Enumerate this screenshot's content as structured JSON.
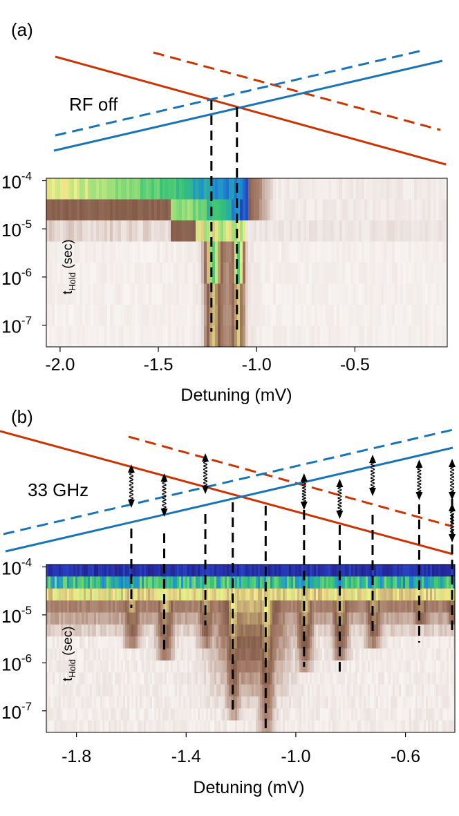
{
  "chart_data": [
    {
      "panel_label": "(a)",
      "type": "heatmap",
      "annotation": "RF off",
      "xlabel": "Detuning (mV)",
      "ylabel_main": "t",
      "ylabel_sub": "Hold",
      "ylabel_unit": " (sec)",
      "x_ticks": [
        {
          "value": -2.0,
          "label": "-2.0"
        },
        {
          "value": -1.5,
          "label": "-1.5"
        },
        {
          "value": -1.0,
          "label": "-1.0"
        },
        {
          "value": -0.5,
          "label": "-0.5"
        }
      ],
      "y_ticks": [
        {
          "exp": -4,
          "base": "10",
          "sup": "-4"
        },
        {
          "exp": -5,
          "base": "10",
          "sup": "-5"
        },
        {
          "exp": -6,
          "base": "10",
          "sup": "-6"
        },
        {
          "exp": -7,
          "base": "10",
          "sup": "-7"
        }
      ],
      "xlim": [
        -2.07,
        -0.03
      ],
      "ylim_log10": [
        -7.45,
        -3.95
      ],
      "y_scale": "log",
      "levels": {
        "crossing_detuning": -1.1,
        "dashed_crossing_detuning": -1.23
      },
      "dashed_markers": [
        -1.23,
        -1.1
      ],
      "colors": {
        "red": "#cc3300",
        "blue": "#1874b8"
      }
    },
    {
      "panel_label": "(b)",
      "type": "heatmap",
      "annotation": "33 GHz",
      "xlabel": "Detuning (mV)",
      "ylabel_main": "t",
      "ylabel_sub": "Hold",
      "ylabel_unit": " (sec)",
      "x_ticks": [
        {
          "value": -1.8,
          "label": "-1.8"
        },
        {
          "value": -1.4,
          "label": "-1.4"
        },
        {
          "value": -1.0,
          "label": "-1.0"
        },
        {
          "value": -0.6,
          "label": "-0.6"
        }
      ],
      "y_ticks": [
        {
          "exp": -4,
          "base": "10",
          "sup": "-4"
        },
        {
          "exp": -5,
          "base": "10",
          "sup": "-5"
        },
        {
          "exp": -6,
          "base": "10",
          "sup": "-6"
        },
        {
          "exp": -7,
          "base": "10",
          "sup": "-7"
        }
      ],
      "xlim": [
        -1.91,
        -0.42
      ],
      "ylim_log10": [
        -7.45,
        -3.95
      ],
      "y_scale": "log",
      "dashed_markers": [
        -1.6,
        -1.48,
        -1.33,
        -1.23,
        -1.11,
        -0.97,
        -0.84,
        -0.72,
        -0.55,
        -0.43
      ],
      "photon_arrows": [
        -1.6,
        -1.48,
        -1.33,
        -0.97,
        -0.84,
        -0.72,
        -0.55,
        -0.43
      ],
      "colors": {
        "red": "#cc3300",
        "blue": "#1874b8"
      }
    }
  ]
}
